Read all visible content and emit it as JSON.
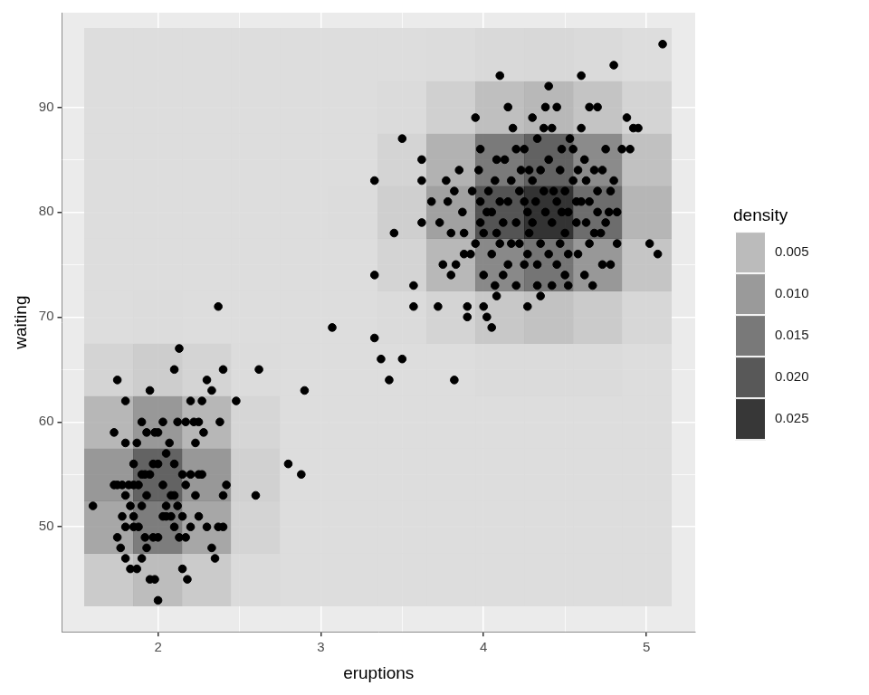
{
  "chart_data": {
    "type": "scatter",
    "x_label": "eruptions",
    "y_label": "waiting",
    "color": "#000000",
    "x": [
      1.6,
      1.75,
      1.8,
      1.73,
      1.8,
      1.87,
      1.9,
      1.93,
      1.95,
      1.98,
      2.0,
      2.03,
      2.05,
      2.07,
      2.1,
      2.12,
      2.13,
      2.17,
      2.2,
      2.22,
      2.25,
      2.27,
      2.3,
      2.33,
      2.37,
      2.4,
      2.38,
      2.28,
      2.23,
      2.25,
      2.2,
      2.17,
      2.15,
      2.12,
      2.08,
      2.03,
      2.0,
      1.97,
      1.95,
      1.92,
      1.88,
      1.85,
      1.82,
      1.78,
      1.75,
      1.73,
      1.8,
      1.83,
      1.9,
      1.93,
      1.85,
      1.88,
      1.92,
      1.97,
      2.0,
      2.03,
      2.08,
      2.1,
      2.13,
      2.17,
      2.2,
      2.25,
      2.3,
      2.33,
      2.37,
      2.4,
      2.42,
      2.4,
      2.35,
      2.15,
      2.18,
      2.05,
      1.95,
      1.98,
      1.87,
      1.83,
      1.8,
      1.77,
      1.75,
      1.78,
      1.8,
      1.85,
      1.9,
      1.93,
      2.0,
      2.1,
      2.05,
      2.27,
      2.23,
      2.15,
      2.1,
      2.48,
      2.62,
      2.6,
      2.8,
      2.88,
      2.9,
      1.85,
      1.9,
      3.07,
      3.33,
      3.33,
      3.33,
      3.37,
      3.42,
      3.45,
      3.5,
      3.5,
      3.57,
      3.57,
      3.62,
      3.62,
      3.62,
      3.68,
      3.72,
      3.73,
      3.75,
      3.77,
      3.78,
      3.8,
      3.82,
      3.83,
      3.85,
      3.87,
      3.88,
      3.9,
      3.9,
      3.93,
      3.95,
      3.97,
      3.98,
      4.0,
      4.02,
      4.05,
      4.07,
      4.08,
      3.92,
      3.95,
      3.98,
      4.0,
      4.02,
      4.03,
      4.05,
      4.07,
      4.08,
      4.1,
      4.1,
      4.12,
      4.13,
      4.15,
      4.17,
      4.18,
      4.2,
      4.2,
      4.22,
      4.23,
      4.25,
      4.25,
      4.27,
      4.28,
      4.3,
      4.32,
      4.33,
      4.35,
      4.35,
      4.37,
      4.38,
      4.4,
      4.4,
      4.42,
      4.43,
      4.45,
      4.45,
      4.47,
      4.48,
      4.5,
      4.5,
      4.52,
      4.53,
      4.55,
      4.57,
      4.58,
      4.6,
      4.6,
      4.62,
      4.63,
      4.65,
      4.65,
      4.67,
      4.68,
      4.7,
      4.7,
      4.72,
      4.73,
      4.75,
      4.77,
      4.78,
      4.8,
      4.8,
      4.82,
      4.85,
      4.88,
      4.9,
      4.92,
      4.95,
      5.02,
      5.07,
      5.1,
      4.3,
      4.33,
      4.42,
      4.27,
      4.2,
      4.5,
      4.55,
      4.38,
      4.35,
      4.12,
      4.15,
      4.17,
      4.27,
      4.6,
      4.63,
      4.7,
      4.75,
      4.68,
      4.57,
      4.47,
      4.4,
      4.3,
      4.22,
      4.1,
      4.05,
      3.98,
      4.28,
      4.37,
      4.45,
      4.52,
      4.65,
      4.78,
      4.82,
      4.73,
      4.58,
      4.48,
      4.25,
      4.15,
      4.0,
      4.08,
      3.88,
      3.82,
      3.8,
      4.33,
      4.52,
      4.62,
      4.42
    ],
    "y": [
      52,
      64,
      62,
      59,
      58,
      58,
      60,
      59,
      63,
      59,
      59,
      60,
      57,
      58,
      65,
      60,
      67,
      60,
      62,
      60,
      60,
      62,
      64,
      63,
      71,
      65,
      60,
      59,
      58,
      55,
      55,
      54,
      51,
      52,
      53,
      54,
      56,
      56,
      55,
      55,
      54,
      54,
      54,
      54,
      54,
      54,
      53,
      52,
      52,
      53,
      51,
      50,
      49,
      49,
      49,
      51,
      51,
      50,
      49,
      49,
      50,
      51,
      50,
      48,
      50,
      53,
      54,
      50,
      47,
      46,
      45,
      51,
      45,
      45,
      46,
      46,
      47,
      48,
      49,
      51,
      50,
      50,
      47,
      48,
      43,
      53,
      52,
      55,
      53,
      55,
      56,
      62,
      65,
      53,
      56,
      55,
      63,
      56,
      55,
      69,
      83,
      74,
      68,
      66,
      64,
      78,
      87,
      66,
      73,
      71,
      85,
      83,
      79,
      81,
      71,
      79,
      75,
      83,
      81,
      74,
      64,
      75,
      84,
      80,
      78,
      70,
      71,
      82,
      89,
      84,
      86,
      71,
      70,
      69,
      73,
      72,
      76,
      77,
      79,
      78,
      80,
      82,
      76,
      83,
      78,
      81,
      93,
      74,
      85,
      90,
      77,
      88,
      86,
      79,
      82,
      84,
      86,
      75,
      80,
      78,
      83,
      81,
      73,
      72,
      77,
      88,
      90,
      92,
      85,
      79,
      82,
      75,
      90,
      84,
      80,
      78,
      74,
      73,
      87,
      83,
      81,
      76,
      93,
      88,
      85,
      79,
      90,
      77,
      73,
      84,
      90,
      82,
      78,
      75,
      86,
      80,
      75,
      94,
      83,
      77,
      86,
      89,
      86,
      88,
      88,
      77,
      76,
      96,
      89,
      87,
      88,
      71,
      73,
      82,
      86,
      80,
      84,
      79,
      81,
      83,
      76,
      81,
      83,
      80,
      79,
      78,
      79,
      77,
      76,
      79,
      77,
      77,
      80,
      81,
      84,
      82,
      81,
      80,
      81,
      82,
      80,
      84,
      84,
      86,
      81,
      75,
      74,
      85,
      76,
      82,
      78,
      75,
      76,
      74,
      73
    ],
    "xlim": [
      1.41,
      5.3
    ],
    "ylim": [
      40,
      99
    ],
    "xticks": [
      2,
      3,
      4,
      5
    ],
    "yticks": [
      50,
      60,
      70,
      80,
      90
    ],
    "grid": true,
    "legend": "right",
    "density": {
      "title": "density",
      "x": [
        1.7,
        2.0,
        2.3,
        2.6,
        2.9,
        3.2,
        3.5,
        3.8,
        4.1,
        4.4,
        4.7,
        5.0
      ],
      "y": [
        45,
        50,
        55,
        60,
        65,
        70,
        75,
        80,
        85,
        90,
        95
      ],
      "values": [
        [
          0.0031,
          0.0055,
          0.0031,
          0.0005,
          0,
          0,
          0,
          0,
          0,
          0,
          0,
          0
        ],
        [
          0.0091,
          0.0162,
          0.0091,
          0.0016,
          0.0001,
          0,
          0,
          0,
          0,
          0,
          0,
          0
        ],
        [
          0.0116,
          0.0206,
          0.0116,
          0.0021,
          0.0001,
          0,
          0,
          0,
          0,
          0,
          0,
          0
        ],
        [
          0.0065,
          0.0116,
          0.0065,
          0.0012,
          0.0001,
          0,
          0,
          0,
          0,
          0,
          0,
          0
        ],
        [
          0.0016,
          0.0028,
          0.0016,
          0.0003,
          0,
          0,
          0.0001,
          0.0002,
          0.0004,
          0.0005,
          0.0004,
          0.0001
        ],
        [
          0.0002,
          0.0003,
          0.0002,
          0,
          0,
          0.0001,
          0.0004,
          0.0016,
          0.0037,
          0.0046,
          0.0031,
          0.0011
        ],
        [
          0,
          0,
          0,
          0,
          0,
          0.0002,
          0.0015,
          0.0062,
          0.0142,
          0.0175,
          0.0117,
          0.0041
        ],
        [
          0,
          0,
          0,
          0,
          0,
          0.0003,
          0.0024,
          0.0102,
          0.0231,
          0.0286,
          0.019,
          0.0067
        ],
        [
          0,
          0,
          0,
          0,
          0,
          0.0002,
          0.0017,
          0.0073,
          0.0167,
          0.0207,
          0.0138,
          0.0048
        ],
        [
          0,
          0,
          0,
          0,
          0,
          0.0001,
          0.0005,
          0.0022,
          0.0051,
          0.0063,
          0.0042,
          0.0015
        ],
        [
          0,
          0,
          0,
          0,
          0,
          0,
          0.0001,
          0.0003,
          0.0007,
          0.0009,
          0.0006,
          0.0002
        ]
      ],
      "range": [
        0,
        0.03
      ],
      "ticks": [
        0.005,
        {
          "value": 0.01,
          "label": "0.010"
        },
        0.015,
        {
          "value": 0.02,
          "label": "0.020"
        },
        0.025
      ],
      "colors": [
        "#dcdcdc",
        "#161616"
      ]
    }
  }
}
